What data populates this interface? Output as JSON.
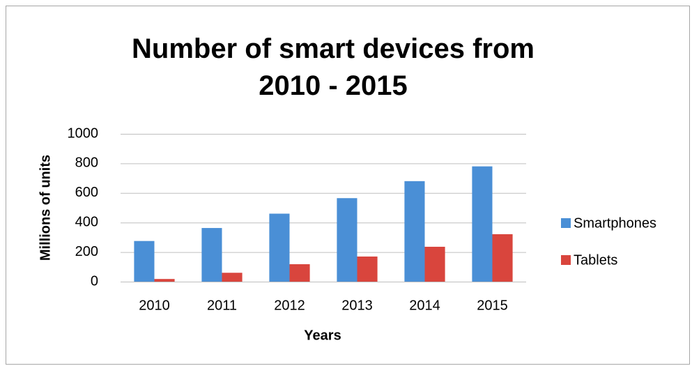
{
  "chart_data": {
    "type": "bar",
    "title": "Number of smart devices from 2010 - 2015",
    "x_label": "Years",
    "y_label": "Millions of units",
    "categories": [
      "2010",
      "2011",
      "2012",
      "2013",
      "2014",
      "2015"
    ],
    "series": [
      {
        "name": "Smartphones",
        "color": "#4a8fd6",
        "values": [
          275,
          363,
          460,
          565,
          680,
          780
        ]
      },
      {
        "name": "Tablets",
        "color": "#d9453d",
        "values": [
          18,
          60,
          118,
          170,
          236,
          321
        ]
      }
    ],
    "ylim": [
      0,
      1000
    ],
    "yticks": [
      0,
      200,
      400,
      600,
      800,
      1000
    ],
    "grid": true,
    "legend": "right"
  }
}
